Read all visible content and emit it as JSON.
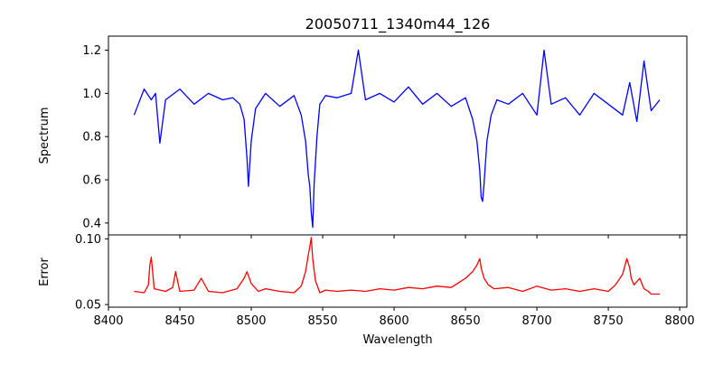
{
  "chart_data": [
    {
      "panel": "spectrum",
      "type": "line",
      "title": "20050711_1340m44_126",
      "xlabel": "",
      "ylabel": "Spectrum",
      "xlim": [
        8400,
        8805
      ],
      "ylim": [
        0.345,
        1.265
      ],
      "xticks": [
        8400,
        8450,
        8500,
        8550,
        8600,
        8650,
        8700,
        8750,
        8800
      ],
      "yticks": [
        0.4,
        0.6,
        0.8,
        1.0,
        1.2
      ],
      "ytick_labels": [
        "0.4",
        "0.6",
        "0.8",
        "1.0",
        "1.2"
      ],
      "color": "#0000ff",
      "series": [
        {
          "x": [
            8418,
            8425,
            8430,
            8433,
            8436,
            8440,
            8450,
            8460,
            8470,
            8480,
            8487,
            8492,
            8495,
            8497,
            8498,
            8500,
            8503,
            8510,
            8520,
            8530,
            8535,
            8538,
            8540,
            8541,
            8542,
            8543,
            8544,
            8546,
            8548,
            8552,
            8560,
            8570,
            8575,
            8580,
            8590,
            8600,
            8610,
            8620,
            8630,
            8640,
            8650,
            8655,
            8658,
            8660,
            8661,
            8662,
            8663,
            8665,
            8668,
            8672,
            8680,
            8690,
            8700,
            8705,
            8710,
            8720,
            8730,
            8740,
            8750,
            8760,
            8765,
            8770,
            8775,
            8780,
            8786
          ],
          "y": [
            0.9,
            1.02,
            0.97,
            1.0,
            0.77,
            0.97,
            1.02,
            0.95,
            1.0,
            0.97,
            0.98,
            0.95,
            0.88,
            0.7,
            0.57,
            0.78,
            0.93,
            1.0,
            0.94,
            0.99,
            0.9,
            0.78,
            0.62,
            0.57,
            0.45,
            0.38,
            0.58,
            0.8,
            0.95,
            0.99,
            0.98,
            1.0,
            1.2,
            0.97,
            1.0,
            0.96,
            1.03,
            0.95,
            1.0,
            0.94,
            0.98,
            0.88,
            0.78,
            0.64,
            0.52,
            0.5,
            0.58,
            0.78,
            0.9,
            0.97,
            0.95,
            1.0,
            0.9,
            1.2,
            0.95,
            0.98,
            0.9,
            1.0,
            0.95,
            0.9,
            1.05,
            0.87,
            1.15,
            0.92,
            0.97
          ]
        }
      ]
    },
    {
      "panel": "error",
      "type": "line",
      "title": "",
      "xlabel": "Wavelength",
      "ylabel": "Error",
      "xlim": [
        8400,
        8805
      ],
      "ylim": [
        0.048,
        0.103
      ],
      "xticks": [
        8400,
        8450,
        8500,
        8550,
        8600,
        8650,
        8700,
        8750,
        8800
      ],
      "yticks": [
        0.05,
        0.1
      ],
      "ytick_labels": [
        "0.05",
        "0.10"
      ],
      "color": "#ff0000",
      "series": [
        {
          "x": [
            8418,
            8425,
            8428,
            8429,
            8430,
            8432,
            8440,
            8445,
            8447,
            8450,
            8460,
            8465,
            8470,
            8480,
            8490,
            8495,
            8497,
            8500,
            8505,
            8510,
            8520,
            8530,
            8535,
            8538,
            8540,
            8541,
            8542,
            8543,
            8545,
            8548,
            8552,
            8560,
            8570,
            8580,
            8590,
            8600,
            8610,
            8620,
            8630,
            8640,
            8650,
            8655,
            8658,
            8660,
            8661,
            8663,
            8666,
            8670,
            8680,
            8690,
            8700,
            8710,
            8720,
            8730,
            8740,
            8750,
            8755,
            8760,
            8763,
            8765,
            8766,
            8768,
            8772,
            8775,
            8778,
            8780,
            8786
          ],
          "y": [
            0.06,
            0.059,
            0.065,
            0.08,
            0.086,
            0.062,
            0.06,
            0.063,
            0.075,
            0.06,
            0.061,
            0.07,
            0.06,
            0.059,
            0.062,
            0.07,
            0.075,
            0.066,
            0.06,
            0.062,
            0.06,
            0.059,
            0.064,
            0.075,
            0.088,
            0.094,
            0.101,
            0.085,
            0.068,
            0.059,
            0.061,
            0.06,
            0.061,
            0.06,
            0.062,
            0.061,
            0.063,
            0.062,
            0.064,
            0.063,
            0.07,
            0.075,
            0.08,
            0.085,
            0.078,
            0.07,
            0.065,
            0.062,
            0.063,
            0.06,
            0.064,
            0.061,
            0.062,
            0.06,
            0.062,
            0.06,
            0.065,
            0.073,
            0.085,
            0.078,
            0.07,
            0.065,
            0.07,
            0.062,
            0.06,
            0.058,
            0.058
          ]
        }
      ]
    }
  ]
}
